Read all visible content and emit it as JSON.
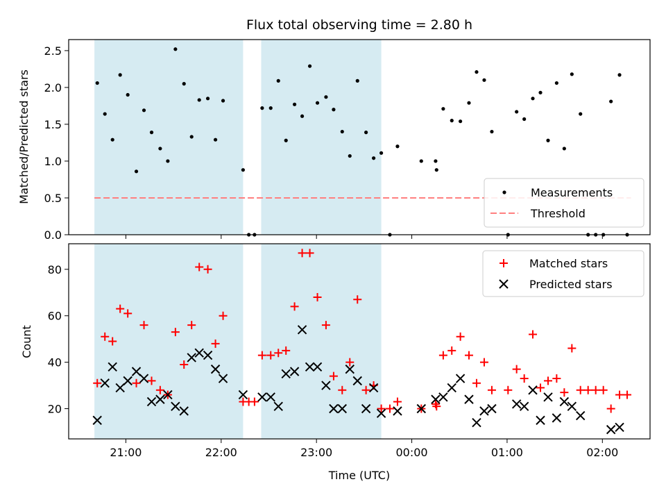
{
  "chart_data": {
    "title": "Flux total observing time = 2.80 h",
    "x_axis": {
      "label": "Time (UTC)",
      "range_hours": [
        20.4,
        26.5
      ],
      "ticks": [
        {
          "value": 21,
          "label": "21:00"
        },
        {
          "value": 22,
          "label": "22:00"
        },
        {
          "value": 23,
          "label": "23:00"
        },
        {
          "value": 24,
          "label": "00:00"
        },
        {
          "value": 25,
          "label": "01:00"
        },
        {
          "value": 26,
          "label": "02:00"
        }
      ]
    },
    "shaded_intervals": [
      [
        20.67,
        22.23
      ],
      [
        22.42,
        23.68
      ]
    ],
    "top": {
      "type": "scatter",
      "ylabel": "Matched/Predicted stars",
      "ylim": [
        0,
        2.65
      ],
      "yticks": [
        {
          "value": 0,
          "label": "0.0"
        },
        {
          "value": 0.5,
          "label": "0.5"
        },
        {
          "value": 1.0,
          "label": "1.0"
        },
        {
          "value": 1.5,
          "label": "1.5"
        },
        {
          "value": 2.0,
          "label": "2.0"
        },
        {
          "value": 2.5,
          "label": "2.5"
        }
      ],
      "threshold": 0.5,
      "legend": [
        {
          "name": "Measurements",
          "marker": "dot",
          "color": "#000000"
        },
        {
          "name": "Threshold",
          "marker": "dashed-line",
          "color": "#ff7f7f"
        }
      ],
      "points": [
        [
          20.7,
          2.06
        ],
        [
          20.78,
          1.64
        ],
        [
          20.86,
          1.29
        ],
        [
          20.94,
          2.17
        ],
        [
          21.02,
          1.9
        ],
        [
          21.11,
          0.86
        ],
        [
          21.19,
          1.69
        ],
        [
          21.27,
          1.39
        ],
        [
          21.36,
          1.17
        ],
        [
          21.44,
          1.0
        ],
        [
          21.52,
          2.52
        ],
        [
          21.61,
          2.05
        ],
        [
          21.69,
          1.33
        ],
        [
          21.77,
          1.83
        ],
        [
          21.86,
          1.85
        ],
        [
          21.94,
          1.29
        ],
        [
          22.02,
          1.82
        ],
        [
          22.23,
          0.88
        ],
        [
          22.29,
          0.0
        ],
        [
          22.35,
          0.0
        ],
        [
          22.43,
          1.72
        ],
        [
          22.52,
          1.72
        ],
        [
          22.6,
          2.09
        ],
        [
          22.68,
          1.28
        ],
        [
          22.77,
          1.77
        ],
        [
          22.85,
          1.61
        ],
        [
          22.93,
          2.29
        ],
        [
          23.01,
          1.79
        ],
        [
          23.1,
          1.87
        ],
        [
          23.18,
          1.7
        ],
        [
          23.27,
          1.4
        ],
        [
          23.35,
          1.07
        ],
        [
          23.43,
          2.09
        ],
        [
          23.52,
          1.39
        ],
        [
          23.6,
          1.04
        ],
        [
          23.68,
          1.11
        ],
        [
          23.77,
          0.0
        ],
        [
          23.85,
          1.2
        ],
        [
          24.1,
          1.0
        ],
        [
          24.25,
          1.0
        ],
        [
          24.26,
          0.88
        ],
        [
          24.33,
          1.71
        ],
        [
          24.42,
          1.55
        ],
        [
          24.51,
          1.54
        ],
        [
          24.6,
          1.79
        ],
        [
          24.68,
          2.21
        ],
        [
          24.76,
          2.1
        ],
        [
          24.84,
          1.4
        ],
        [
          25.01,
          0.0
        ],
        [
          25.1,
          1.67
        ],
        [
          25.18,
          1.57
        ],
        [
          25.27,
          1.85
        ],
        [
          25.35,
          1.93
        ],
        [
          25.43,
          1.28
        ],
        [
          25.52,
          2.06
        ],
        [
          25.6,
          1.17
        ],
        [
          25.68,
          2.18
        ],
        [
          25.77,
          1.64
        ],
        [
          25.85,
          0.0
        ],
        [
          25.93,
          0.0
        ],
        [
          26.01,
          0.0
        ],
        [
          26.09,
          1.81
        ],
        [
          26.18,
          2.17
        ],
        [
          26.26,
          0.0
        ]
      ]
    },
    "bottom": {
      "type": "scatter",
      "ylabel": "Count",
      "ylim": [
        7,
        91
      ],
      "yticks": [
        {
          "value": 20,
          "label": "20"
        },
        {
          "value": 40,
          "label": "40"
        },
        {
          "value": 60,
          "label": "60"
        },
        {
          "value": 80,
          "label": "80"
        }
      ],
      "legend": [
        {
          "name": "Matched stars",
          "marker": "plus",
          "color": "#ff0000"
        },
        {
          "name": "Predicted stars",
          "marker": "x",
          "color": "#000000"
        }
      ],
      "matched": [
        [
          20.7,
          31
        ],
        [
          20.78,
          51
        ],
        [
          20.86,
          49
        ],
        [
          20.94,
          63
        ],
        [
          21.02,
          61
        ],
        [
          21.11,
          31
        ],
        [
          21.19,
          56
        ],
        [
          21.27,
          32
        ],
        [
          21.36,
          28
        ],
        [
          21.44,
          26
        ],
        [
          21.52,
          53
        ],
        [
          21.61,
          39
        ],
        [
          21.69,
          56
        ],
        [
          21.77,
          81
        ],
        [
          21.86,
          80
        ],
        [
          21.94,
          48
        ],
        [
          22.02,
          60
        ],
        [
          22.23,
          23
        ],
        [
          22.29,
          23
        ],
        [
          22.35,
          23
        ],
        [
          22.43,
          43
        ],
        [
          22.52,
          43
        ],
        [
          22.6,
          44
        ],
        [
          22.68,
          45
        ],
        [
          22.77,
          64
        ],
        [
          22.85,
          87
        ],
        [
          22.93,
          87
        ],
        [
          23.01,
          68
        ],
        [
          23.1,
          56
        ],
        [
          23.18,
          34
        ],
        [
          23.27,
          28
        ],
        [
          23.35,
          40
        ],
        [
          23.43,
          67
        ],
        [
          23.52,
          28
        ],
        [
          23.6,
          30
        ],
        [
          23.68,
          20
        ],
        [
          23.77,
          20
        ],
        [
          23.85,
          23
        ],
        [
          24.1,
          20
        ],
        [
          24.25,
          22
        ],
        [
          24.26,
          21
        ],
        [
          24.33,
          43
        ],
        [
          24.42,
          45
        ],
        [
          24.51,
          51
        ],
        [
          24.6,
          43
        ],
        [
          24.68,
          31
        ],
        [
          24.76,
          40
        ],
        [
          24.84,
          28
        ],
        [
          25.01,
          28
        ],
        [
          25.1,
          37
        ],
        [
          25.18,
          33
        ],
        [
          25.27,
          52
        ],
        [
          25.35,
          29
        ],
        [
          25.43,
          32
        ],
        [
          25.52,
          33
        ],
        [
          25.6,
          27
        ],
        [
          25.68,
          46
        ],
        [
          25.77,
          28
        ],
        [
          25.85,
          28
        ],
        [
          25.93,
          28
        ],
        [
          26.01,
          28
        ],
        [
          26.09,
          20
        ],
        [
          26.18,
          26
        ],
        [
          26.26,
          26
        ]
      ],
      "predicted": [
        [
          20.7,
          15
        ],
        [
          20.78,
          31
        ],
        [
          20.86,
          38
        ],
        [
          20.94,
          29
        ],
        [
          21.02,
          32
        ],
        [
          21.11,
          36
        ],
        [
          21.19,
          33
        ],
        [
          21.27,
          23
        ],
        [
          21.36,
          24
        ],
        [
          21.44,
          26
        ],
        [
          21.52,
          21
        ],
        [
          21.61,
          19
        ],
        [
          21.69,
          42
        ],
        [
          21.77,
          44
        ],
        [
          21.86,
          43
        ],
        [
          21.94,
          37
        ],
        [
          22.02,
          33
        ],
        [
          22.23,
          26
        ],
        [
          22.43,
          25
        ],
        [
          22.52,
          25
        ],
        [
          22.6,
          21
        ],
        [
          22.68,
          35
        ],
        [
          22.77,
          36
        ],
        [
          22.85,
          54
        ],
        [
          22.93,
          38
        ],
        [
          23.01,
          38
        ],
        [
          23.1,
          30
        ],
        [
          23.18,
          20
        ],
        [
          23.27,
          20
        ],
        [
          23.35,
          37
        ],
        [
          23.43,
          32
        ],
        [
          23.52,
          20
        ],
        [
          23.6,
          29
        ],
        [
          23.68,
          18
        ],
        [
          23.85,
          19
        ],
        [
          24.1,
          20
        ],
        [
          24.25,
          24
        ],
        [
          24.33,
          25
        ],
        [
          24.42,
          29
        ],
        [
          24.51,
          33
        ],
        [
          24.6,
          24
        ],
        [
          24.68,
          14
        ],
        [
          24.76,
          19
        ],
        [
          24.84,
          20
        ],
        [
          25.1,
          22
        ],
        [
          25.18,
          21
        ],
        [
          25.27,
          28
        ],
        [
          25.35,
          15
        ],
        [
          25.43,
          25
        ],
        [
          25.52,
          16
        ],
        [
          25.6,
          23
        ],
        [
          25.68,
          21
        ],
        [
          25.77,
          17
        ],
        [
          26.09,
          11
        ],
        [
          26.18,
          12
        ]
      ]
    }
  }
}
